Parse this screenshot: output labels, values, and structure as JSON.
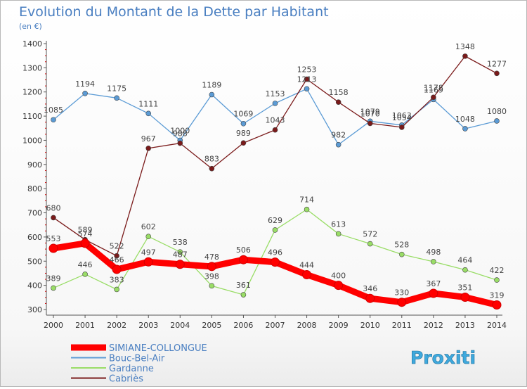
{
  "chart_data": {
    "type": "line",
    "title": "Evolution du Montant de la Dette par Habitant",
    "subtitle": "(en €)",
    "x": [
      2000,
      2001,
      2002,
      2003,
      2004,
      2005,
      2006,
      2007,
      2008,
      2009,
      2010,
      2011,
      2012,
      2013,
      2014
    ],
    "ylim": [
      300,
      1400
    ],
    "yticks": [
      300,
      400,
      500,
      600,
      700,
      800,
      900,
      1000,
      1100,
      1200,
      1300,
      1400
    ],
    "grid": false,
    "legend_position": "bottom-left",
    "series": [
      {
        "name": "SIMIANE-COLLONGUE",
        "color": "#ff0000",
        "values": [
          553,
          574,
          466,
          497,
          487,
          478,
          506,
          496,
          444,
          400,
          346,
          330,
          367,
          351,
          319
        ]
      },
      {
        "name": "Bouc-Bel-Air",
        "color": "#5b9bd5",
        "values": [
          1085,
          1194,
          1175,
          1111,
          1000,
          1189,
          1069,
          1153,
          1213,
          982,
          1079,
          1063,
          1169,
          1048,
          1080
        ]
      },
      {
        "name": "Gardanne",
        "color": "#99dd66",
        "values": [
          389,
          446,
          383,
          602,
          538,
          398,
          361,
          629,
          714,
          613,
          572,
          528,
          498,
          464,
          422
        ]
      },
      {
        "name": "Cabriès",
        "color": "#7a1a1a",
        "values": [
          680,
          589,
          522,
          967,
          988,
          883,
          989,
          1043,
          1253,
          1158,
          1070,
          1054,
          1178,
          1348,
          1277
        ]
      }
    ]
  },
  "watermark": "Proxiti"
}
